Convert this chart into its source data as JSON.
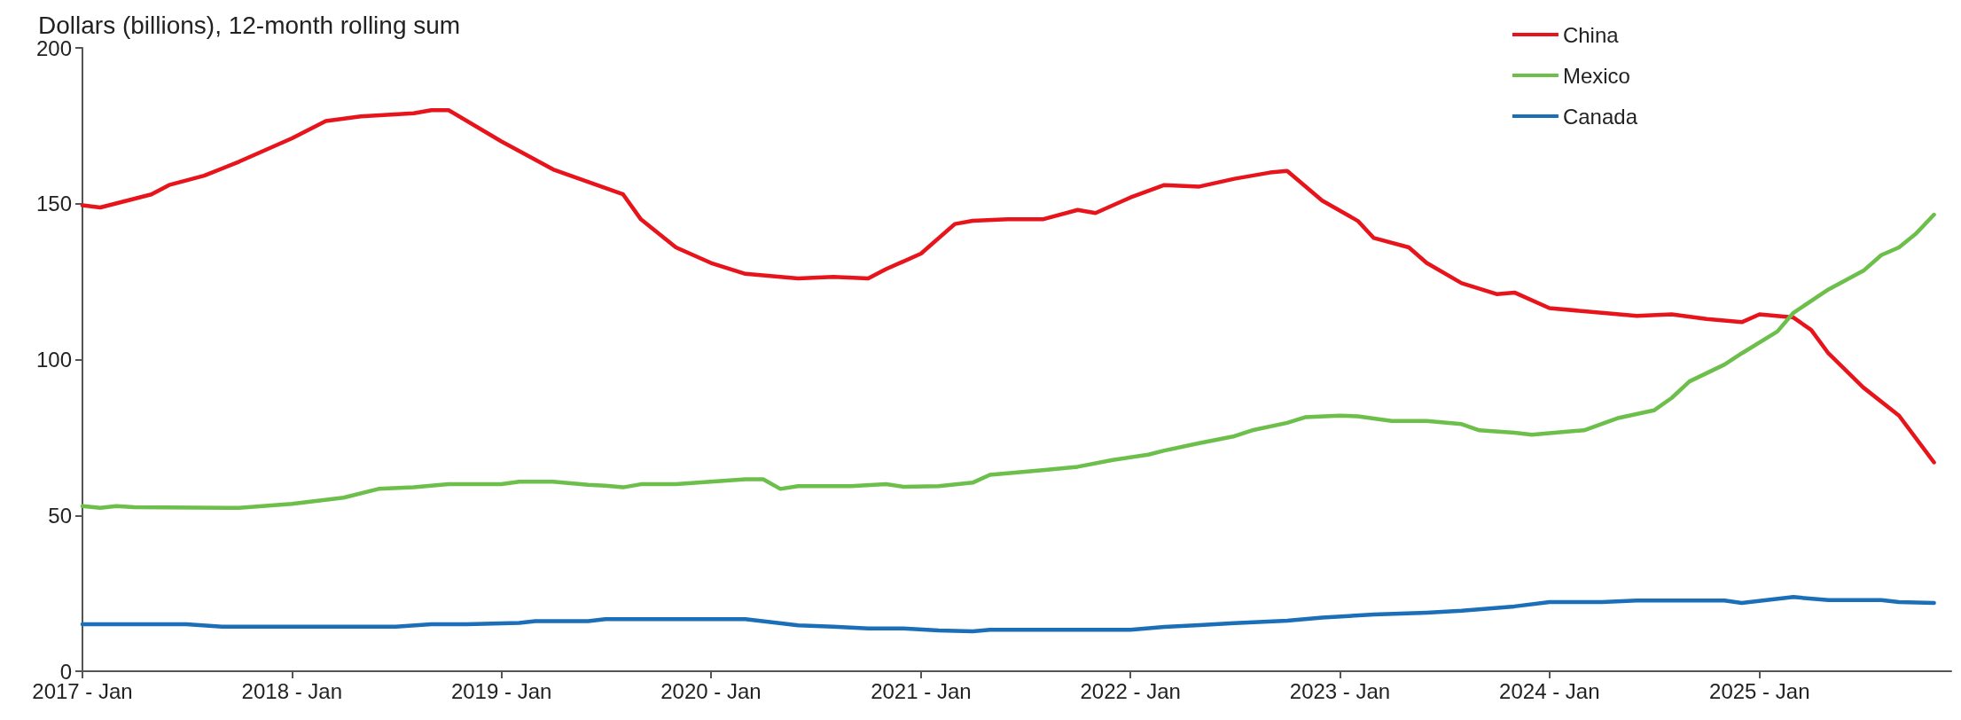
{
  "chart_data": {
    "type": "line",
    "ylabel": "Dollars (billions), 12-month rolling sum",
    "xlim": [
      "2017-01",
      "2025-12"
    ],
    "xticks": [
      {
        "value": "2017-01",
        "label": "2017 - Jan"
      },
      {
        "value": "2018-01",
        "label": "2018 - Jan"
      },
      {
        "value": "2019-01",
        "label": "2019 - Jan"
      },
      {
        "value": "2020-01",
        "label": "2020 - Jan"
      },
      {
        "value": "2021-01",
        "label": "2021 - Jan"
      },
      {
        "value": "2022-01",
        "label": "2022 - Jan"
      },
      {
        "value": "2023-01",
        "label": "2023 - Jan"
      },
      {
        "value": "2024-01",
        "label": "2024 - Jan"
      },
      {
        "value": "2025-01",
        "label": "2025 - Jan"
      }
    ],
    "ylim": [
      0,
      200
    ],
    "yticks": [
      0,
      50,
      100,
      150,
      200
    ],
    "grid": false,
    "legend": "top right",
    "marker": "none",
    "line_style": "solid",
    "series": [
      {
        "name": "China",
        "color": "#e8141b",
        "x": [
          "2017-01",
          "2017-02",
          "2017-05",
          "2017-06",
          "2017-08",
          "2017-10",
          "2018-01",
          "2018-03",
          "2018-05",
          "2018-08",
          "2018-09",
          "2018-10",
          "2019-01",
          "2019-04",
          "2019-06",
          "2019-08",
          "2019-09",
          "2019-11",
          "2020-01",
          "2020-03",
          "2020-05",
          "2020-06",
          "2020-08",
          "2020-10",
          "2020-11",
          "2021-01",
          "2021-03",
          "2021-04",
          "2021-06",
          "2021-08",
          "2021-10",
          "2021-11",
          "2022-01",
          "2022-03",
          "2022-05",
          "2022-07",
          "2022-09",
          "2022-10",
          "2022-12",
          "2023-02",
          "2023-03",
          "2023-05",
          "2023-06",
          "2023-08",
          "2023-10",
          "2023-11",
          "2024-01",
          "2024-04",
          "2024-06",
          "2024-08",
          "2024-10",
          "2024-12",
          "2025-01",
          "2025-03",
          "2025-04",
          "2025-05",
          "2025-07",
          "2025-09",
          "2025-11"
        ],
        "values": [
          149.5,
          148.8,
          153,
          156,
          159,
          163.5,
          171,
          176.5,
          178,
          179,
          180,
          180,
          170,
          161,
          157,
          153,
          145,
          136,
          131,
          127.5,
          126.5,
          126,
          126.5,
          126,
          129,
          134,
          143.5,
          144.5,
          145,
          145,
          148,
          147,
          152,
          156,
          155.5,
          158,
          160,
          160.5,
          151,
          144.5,
          139,
          136,
          131,
          124.5,
          121,
          121.5,
          116.5,
          115,
          114,
          114.5,
          113,
          112,
          114.5,
          113.5,
          109.5,
          102,
          91,
          82,
          67
        ]
      },
      {
        "name": "Mexico",
        "color": "#6cbf4a",
        "x": [
          "2017-01",
          "2017-02",
          "2017-03",
          "2017-04",
          "2017-10",
          "2018-01",
          "2018-04",
          "2018-06",
          "2018-08",
          "2018-10",
          "2019-01",
          "2019-02",
          "2019-04",
          "2019-06",
          "2019-07",
          "2019-08",
          "2019-09",
          "2019-11",
          "2020-03",
          "2020-04",
          "2020-05",
          "2020-06",
          "2020-09",
          "2020-11",
          "2020-12",
          "2021-02",
          "2021-04",
          "2021-05",
          "2021-08",
          "2021-10",
          "2021-12",
          "2022-02",
          "2022-03",
          "2022-05",
          "2022-07",
          "2022-08",
          "2022-10",
          "2022-11",
          "2023-01",
          "2023-02",
          "2023-04",
          "2023-06",
          "2023-08",
          "2023-09",
          "2023-11",
          "2023-12",
          "2024-02",
          "2024-03",
          "2024-05",
          "2024-07",
          "2024-08",
          "2024-09",
          "2024-11",
          "2024-12",
          "2025-02",
          "2025-03",
          "2025-05",
          "2025-07",
          "2025-08",
          "2025-09",
          "2025-10",
          "2025-11"
        ],
        "values": [
          53,
          52.4,
          53,
          52.6,
          52.4,
          53.7,
          55.7,
          58.5,
          59,
          60,
          60,
          60.8,
          60.8,
          59.8,
          59.5,
          59,
          60,
          60,
          61.6,
          61.6,
          58.5,
          59.4,
          59.4,
          60,
          59.2,
          59.4,
          60.5,
          63,
          64.5,
          65.6,
          67.8,
          69.5,
          70.8,
          73.2,
          75.4,
          77.3,
          79.7,
          81.5,
          82,
          81.8,
          80.3,
          80.3,
          79.3,
          77.3,
          76.5,
          75.9,
          76.9,
          77.3,
          81.3,
          83.7,
          87.7,
          93,
          98.4,
          102,
          109,
          115,
          122.5,
          128.5,
          133.5,
          136,
          140.5,
          146.5
        ]
      },
      {
        "name": "Canada",
        "color": "#1a6fb8",
        "x": [
          "2017-01",
          "2017-07",
          "2017-09",
          "2018-07",
          "2018-09",
          "2018-11",
          "2019-02",
          "2019-03",
          "2019-06",
          "2019-07",
          "2020-03",
          "2020-06",
          "2020-08",
          "2020-10",
          "2020-12",
          "2021-02",
          "2021-04",
          "2021-05",
          "2022-01",
          "2022-03",
          "2022-05",
          "2022-07",
          "2022-10",
          "2022-12",
          "2023-03",
          "2023-06",
          "2023-08",
          "2023-11",
          "2024-01",
          "2024-04",
          "2024-06",
          "2024-11",
          "2024-12",
          "2025-03",
          "2025-05",
          "2025-08",
          "2025-09",
          "2025-11"
        ],
        "values": [
          15.1,
          15.1,
          14.3,
          14.3,
          15.1,
          15.1,
          15.5,
          16.1,
          16.1,
          16.7,
          16.7,
          14.7,
          14.3,
          13.7,
          13.7,
          13.1,
          12.8,
          13.3,
          13.3,
          14.2,
          14.8,
          15.4,
          16.2,
          17.2,
          18.2,
          18.8,
          19.4,
          20.8,
          22.2,
          22.2,
          22.7,
          22.7,
          21.9,
          23.8,
          22.8,
          22.8,
          22.2,
          21.9
        ]
      }
    ]
  }
}
